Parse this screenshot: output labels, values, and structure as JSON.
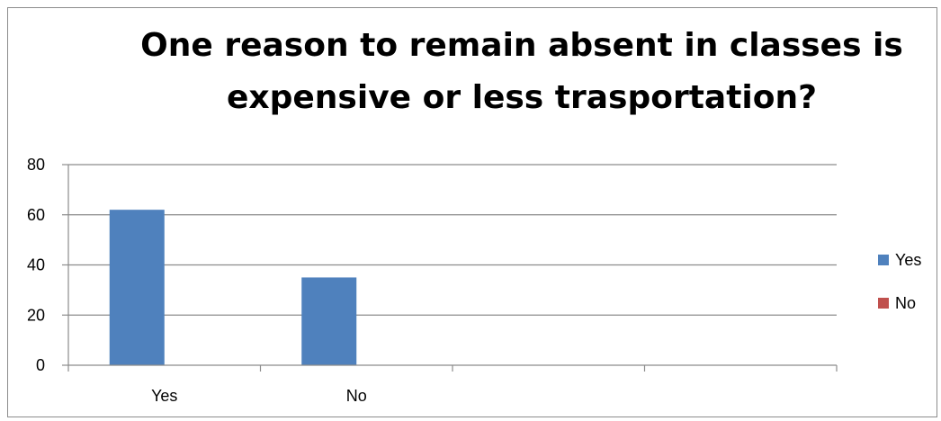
{
  "chart_data": {
    "type": "bar",
    "title": "One reason to remain absent in classes is expensive or less trasportation?",
    "categories": [
      "Yes",
      "No",
      "",
      ""
    ],
    "series": [
      {
        "name": "Yes",
        "values": [
          62,
          35,
          0,
          0
        ],
        "color": "#4F81BD"
      },
      {
        "name": "No",
        "values": [
          0,
          0,
          0,
          0
        ],
        "color": "#C0504D"
      }
    ],
    "xlabel": "",
    "ylabel": "",
    "ylim": [
      0,
      80
    ],
    "yticks": [
      0,
      20,
      40,
      60,
      80
    ],
    "grid": true,
    "legend_position": "right"
  }
}
